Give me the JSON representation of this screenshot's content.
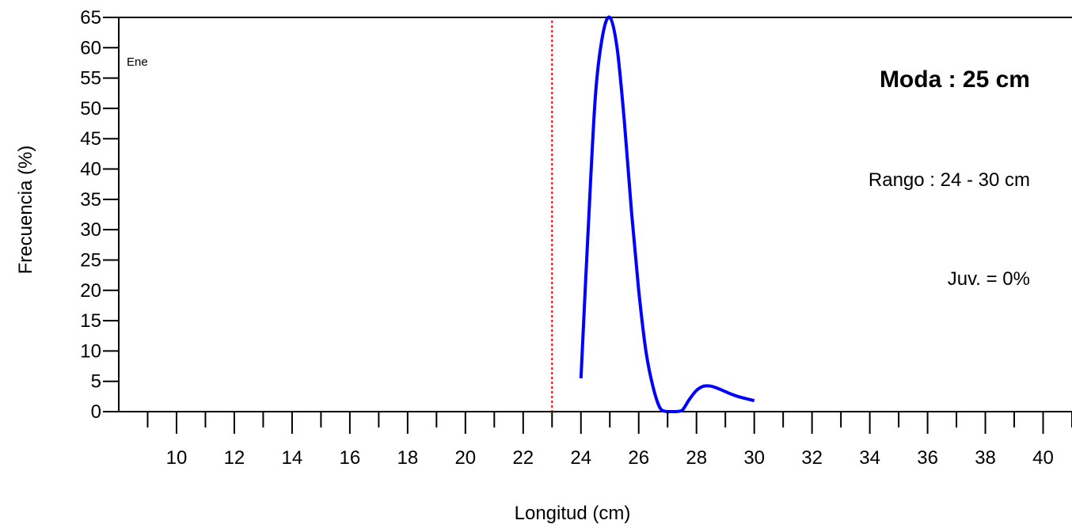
{
  "chart_data": {
    "type": "line",
    "xlabel": "Longitud (cm)",
    "ylabel": "Frecuencia (%)",
    "xlim": [
      8,
      41
    ],
    "ylim": [
      0,
      65
    ],
    "x_ticks": [
      10,
      12,
      14,
      16,
      18,
      20,
      22,
      24,
      26,
      28,
      30,
      32,
      34,
      36,
      38,
      40
    ],
    "y_ticks": [
      0,
      5,
      10,
      15,
      20,
      25,
      30,
      35,
      40,
      45,
      50,
      55,
      60,
      65
    ],
    "series": [
      {
        "color": "#0000ff",
        "x": [
          24,
          24.25,
          24.5,
          24.75,
          25,
          25.25,
          25.5,
          25.75,
          26,
          26.25,
          26.5,
          26.75,
          27,
          27.25,
          27.5,
          27.75,
          28,
          28.25,
          28.5,
          28.75,
          29,
          29.25,
          29.5,
          29.75,
          30
        ],
        "values": [
          5.5,
          30,
          52,
          62,
          65,
          60,
          48,
          33,
          20,
          10,
          4,
          0.5,
          0,
          0,
          0.2,
          2,
          3.5,
          4.2,
          4.2,
          3.8,
          3.3,
          2.8,
          2.4,
          2.1,
          1.8
        ]
      }
    ],
    "reference_line": {
      "x": 23,
      "color": "#ff0000",
      "style": "dotted"
    },
    "annotations": {
      "month": "Ene",
      "mode": "Moda : 25 cm",
      "range": "Rango : 24 - 30 cm",
      "juveniles": "Juv. = 0%"
    },
    "grid": false,
    "legend": "none"
  }
}
